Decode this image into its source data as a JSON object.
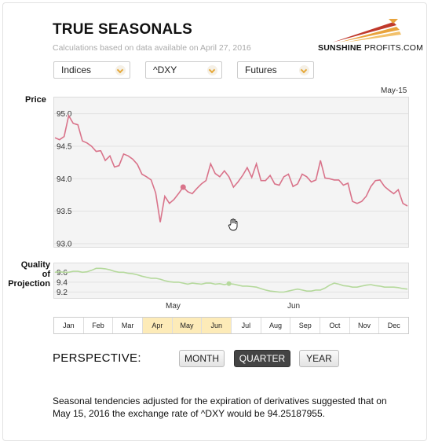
{
  "header": {
    "title": "TRUE SEASONALS",
    "subtitle": "Calculations based on data available on April 27, 2016"
  },
  "logo": {
    "strong": "SUNSHINE",
    "thin": "PROFITS.COM",
    "colors": [
      "#c0392b",
      "#e8a33c",
      "#f2c16b"
    ]
  },
  "dropdowns": [
    {
      "value": "Indices"
    },
    {
      "value": "^DXY"
    },
    {
      "value": "Futures"
    }
  ],
  "price_chart": {
    "label": "Price",
    "date_label": "May-15",
    "y_ticks": [
      "95.0",
      "94.5",
      "94.0",
      "93.5",
      "93.0"
    ]
  },
  "quality_chart": {
    "label_line1": "Quality of",
    "label_line2": "Projection",
    "y_ticks": [
      "9.6",
      "9.4",
      "9.2"
    ]
  },
  "x_month_labels": [
    "May",
    "Jun"
  ],
  "months": [
    "Jan",
    "Feb",
    "Mar",
    "Apr",
    "May",
    "Jun",
    "Jul",
    "Aug",
    "Sep",
    "Oct",
    "Nov",
    "Dec"
  ],
  "highlighted_months": [
    "Apr",
    "May",
    "Jun"
  ],
  "perspective": {
    "label": "PERSPECTIVE:",
    "buttons": [
      "MONTH",
      "QUARTER",
      "YEAR"
    ],
    "active": "QUARTER"
  },
  "description": "Seasonal tendencies adjusted for the expiration of derivatives suggested that on May 15, 2016 the exchange rate of ^DXY would be 94.25187955.",
  "chart_data": [
    {
      "type": "line",
      "name": "Price",
      "ylim": [
        92.95,
        95.25
      ],
      "color": "#d9738a",
      "highlight_index": 28,
      "values": [
        94.63,
        94.6,
        94.65,
        94.97,
        94.85,
        94.83,
        94.58,
        94.55,
        94.5,
        94.42,
        94.43,
        94.28,
        94.35,
        94.18,
        94.2,
        94.38,
        94.35,
        94.3,
        94.22,
        94.07,
        94.03,
        93.98,
        93.78,
        93.33,
        93.73,
        93.62,
        93.68,
        93.77,
        93.87,
        93.8,
        93.77,
        93.85,
        93.92,
        93.97,
        94.23,
        94.08,
        94.03,
        94.12,
        94.03,
        93.87,
        93.95,
        94.05,
        94.17,
        94.02,
        94.23,
        93.97,
        93.97,
        94.05,
        93.92,
        93.9,
        94.03,
        94.07,
        93.88,
        93.92,
        94.07,
        94.03,
        93.95,
        93.98,
        94.28,
        94.01,
        94.0,
        93.98,
        93.98,
        93.9,
        93.93,
        93.65,
        93.62,
        93.65,
        93.73,
        93.88,
        93.97,
        93.98,
        93.88,
        93.82,
        93.77,
        93.83,
        93.62,
        93.58
      ],
      "x_ticks": [
        {
          "label": "May",
          "index": 25
        },
        {
          "label": "Jun",
          "index": 53
        }
      ]
    },
    {
      "type": "line",
      "name": "Quality of Projection",
      "ylim": [
        9.08,
        9.78
      ],
      "color": "#b5d99c",
      "highlight_index": 38,
      "values": [
        9.6,
        9.61,
        9.6,
        9.6,
        9.62,
        9.62,
        9.6,
        9.61,
        9.64,
        9.68,
        9.68,
        9.67,
        9.65,
        9.62,
        9.6,
        9.6,
        9.58,
        9.57,
        9.55,
        9.52,
        9.5,
        9.48,
        9.48,
        9.46,
        9.43,
        9.41,
        9.4,
        9.4,
        9.38,
        9.36,
        9.38,
        9.37,
        9.36,
        9.38,
        9.38,
        9.36,
        9.37,
        9.35,
        9.37,
        9.36,
        9.34,
        9.32,
        9.32,
        9.31,
        9.3,
        9.27,
        9.24,
        9.22,
        9.21,
        9.2,
        9.2,
        9.22,
        9.24,
        9.26,
        9.24,
        9.22,
        9.22,
        9.24,
        9.24,
        9.28,
        9.34,
        9.38,
        9.36,
        9.33,
        9.32,
        9.3,
        9.3,
        9.32,
        9.34,
        9.35,
        9.33,
        9.32,
        9.3,
        9.3,
        9.3,
        9.29,
        9.27,
        9.26
      ]
    }
  ]
}
